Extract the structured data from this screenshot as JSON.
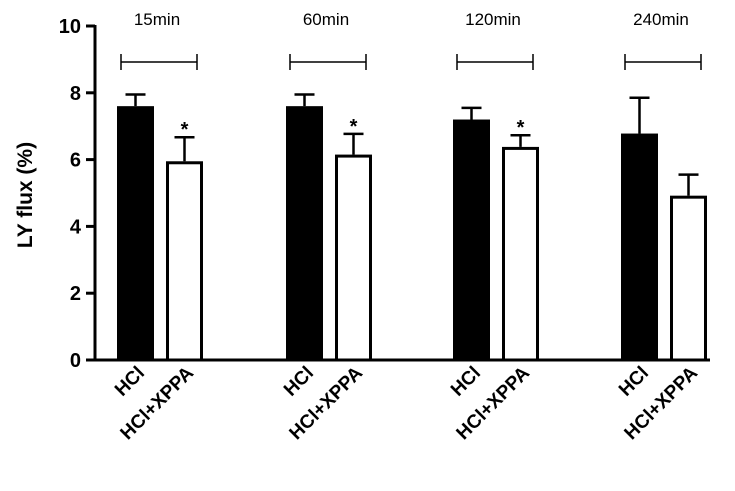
{
  "chart_data": {
    "type": "bar",
    "ylabel": "LY flux (%)",
    "ylim": [
      0,
      10
    ],
    "yticks": [
      0,
      2,
      4,
      6,
      8,
      10
    ],
    "grid": false,
    "groups": [
      {
        "label": "15min",
        "bars": [
          {
            "category": "HCl",
            "value": 7.6,
            "error": 0.35,
            "fill": "solid",
            "significance": ""
          },
          {
            "category": "HCl+XPPA",
            "value": 5.95,
            "error": 0.72,
            "fill": "open",
            "significance": "*"
          }
        ]
      },
      {
        "label": "60min",
        "bars": [
          {
            "category": "HCl",
            "value": 7.6,
            "error": 0.35,
            "fill": "solid",
            "significance": ""
          },
          {
            "category": "HCl+XPPA",
            "value": 6.15,
            "error": 0.62,
            "fill": "open",
            "significance": "*"
          }
        ]
      },
      {
        "label": "120min",
        "bars": [
          {
            "category": "HCl",
            "value": 7.2,
            "error": 0.35,
            "fill": "solid",
            "significance": ""
          },
          {
            "category": "HCl+XPPA",
            "value": 6.38,
            "error": 0.35,
            "fill": "open",
            "significance": "*"
          }
        ]
      },
      {
        "label": "240min",
        "bars": [
          {
            "category": "HCl",
            "value": 6.78,
            "error": 1.07,
            "fill": "solid",
            "significance": ""
          },
          {
            "category": "HCl+XPPA",
            "value": 4.92,
            "error": 0.63,
            "fill": "open",
            "significance": ""
          }
        ]
      }
    ],
    "colors": {
      "solid": "#000000",
      "open": "#ffffff",
      "stroke": "#000000"
    }
  }
}
